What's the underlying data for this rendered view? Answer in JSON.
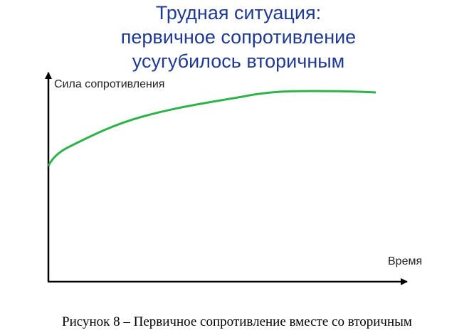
{
  "header": {
    "title_lines": [
      "Трудная ситуация:",
      "первичное сопротивление",
      "усугубилось вторичным"
    ]
  },
  "axes": {
    "y_label": "Сила сопротивления",
    "x_label": "Время"
  },
  "caption": "Рисунок 8 – Первичное сопротивление вместе со вторичным"
}
